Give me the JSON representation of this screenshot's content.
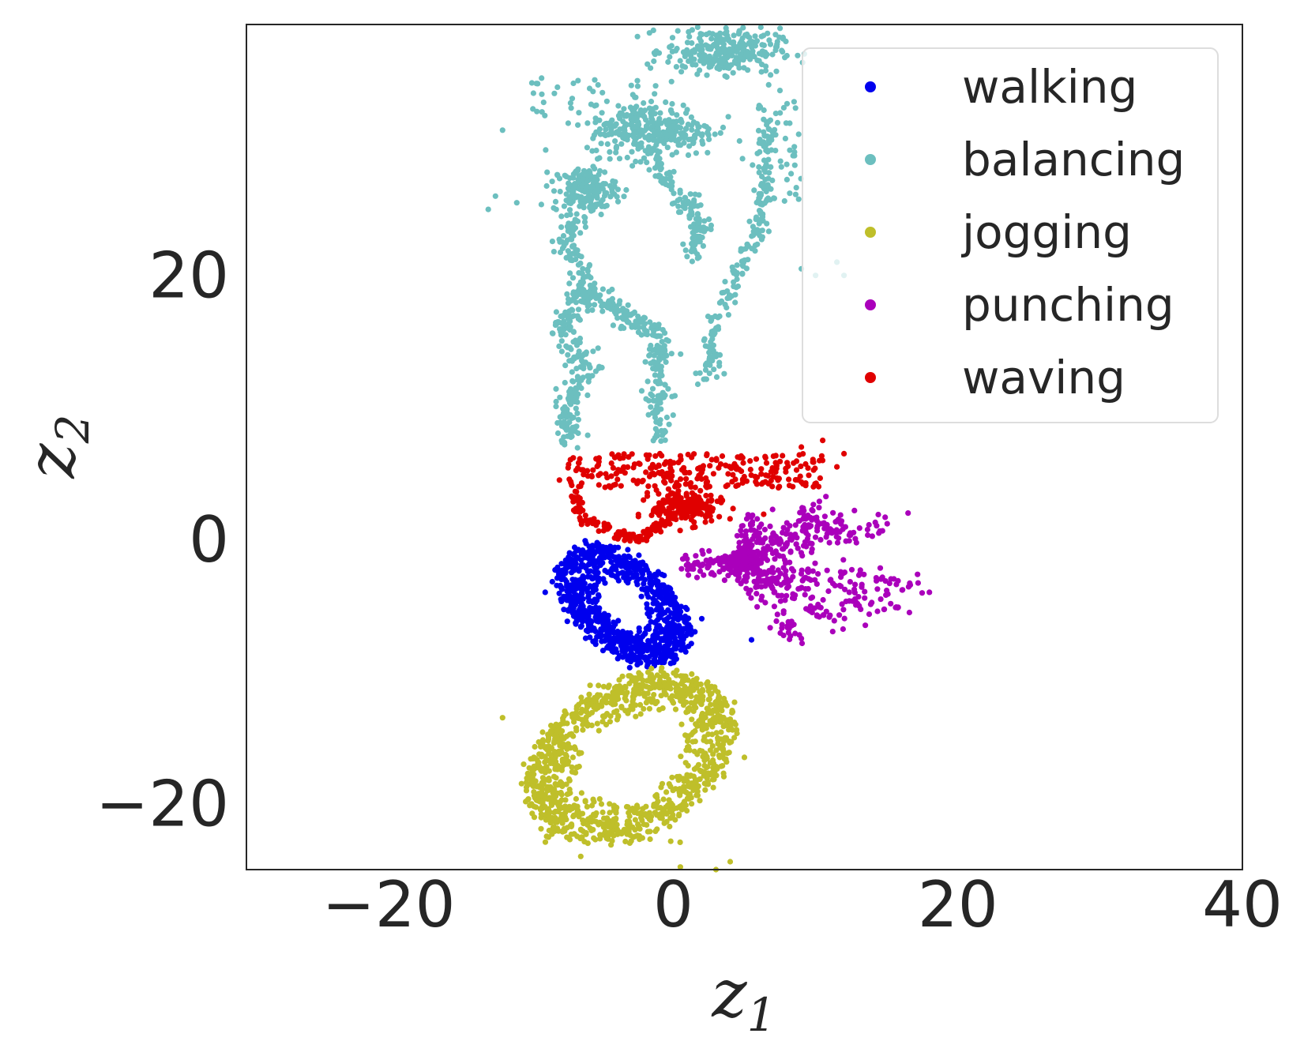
{
  "chart_data": {
    "type": "scatter",
    "xlabel": "z1",
    "ylabel": "z2",
    "xlabel_base": "z",
    "xlabel_sub": "1",
    "ylabel_base": "z",
    "ylabel_sub": "2",
    "xlim": [
      -30,
      40
    ],
    "ylim": [
      -25,
      39
    ],
    "xticks": [
      -20,
      0,
      20,
      40
    ],
    "xtick_labels": [
      "−20",
      "0",
      "20",
      "40"
    ],
    "yticks": [
      -20,
      0,
      20
    ],
    "ytick_labels": [
      "−20",
      "0",
      "20"
    ],
    "grid": false,
    "legend_position": "top-right",
    "series": [
      {
        "name": "walking",
        "color": "#0000ee",
        "clusters": [
          {
            "shape": "ring",
            "center": [
              -3.5,
              -5.0
            ],
            "radii": [
              5.5,
              3.3
            ],
            "inner": [
              1.8,
              1.2
            ],
            "angle": -45,
            "count": 900
          }
        ],
        "points": [
          [
            -9.0,
            -4.0
          ],
          [
            -8.5,
            -3.2
          ],
          [
            2.0,
            -6.0
          ],
          [
            5.5,
            -7.6
          ],
          [
            -1.5,
            -8.2
          ]
        ]
      },
      {
        "name": "balancing",
        "color": "#6cbfbf",
        "clusters": [
          {
            "shape": "blob",
            "center": [
              3.5,
              37.0
            ],
            "radii": [
              4.0,
              1.7
            ],
            "angle": 0,
            "count": 280
          },
          {
            "shape": "blob",
            "center": [
              -1.5,
              31.0
            ],
            "radii": [
              4.5,
              2.0
            ],
            "angle": 0,
            "count": 300
          },
          {
            "shape": "blob",
            "center": [
              -6.2,
              26.5
            ],
            "radii": [
              2.2,
              1.7
            ],
            "angle": 0,
            "count": 160
          },
          {
            "shape": "path",
            "points": [
              [
                -6.2,
                26.5
              ],
              [
                -7.5,
                22.5
              ],
              [
                -6.0,
                19.0
              ],
              [
                -8.0,
                16.0
              ],
              [
                -6.0,
                13.0
              ],
              [
                -7.5,
                10.0
              ],
              [
                -7.5,
                7.5
              ]
            ],
            "spread": 0.9,
            "count": 320
          },
          {
            "shape": "path",
            "points": [
              [
                -6.0,
                19.0
              ],
              [
                -3.5,
                17.0
              ],
              [
                -1.0,
                15.5
              ],
              [
                -1.0,
                12.0
              ],
              [
                -1.0,
                7.5
              ]
            ],
            "spread": 0.8,
            "count": 240
          },
          {
            "shape": "path",
            "points": [
              [
                -1.5,
                29.0
              ],
              [
                0.5,
                26.0
              ],
              [
                2.0,
                24.0
              ],
              [
                1.0,
                21.0
              ]
            ],
            "spread": 0.8,
            "count": 130
          },
          {
            "shape": "path",
            "points": [
              [
                6.5,
                32.0
              ],
              [
                6.5,
                27.0
              ],
              [
                6.0,
                24.0
              ],
              [
                4.5,
                20.0
              ],
              [
                3.0,
                17.0
              ],
              [
                2.5,
                12.0
              ]
            ],
            "spread": 0.7,
            "count": 200
          },
          {
            "shape": "scatter",
            "center": [
              -5.0,
              33.5
            ],
            "radii": [
              5.0,
              1.5
            ],
            "count": 45
          },
          {
            "shape": "scatter",
            "center": [
              7.5,
              30.0
            ],
            "radii": [
              1.5,
              4.5
            ],
            "count": 40
          }
        ],
        "points": [
          [
            -12.0,
            31.0
          ],
          [
            -12.5,
            26.0
          ],
          [
            -13.0,
            25.0
          ],
          [
            -11.0,
            25.5
          ],
          [
            7.5,
            34.0
          ],
          [
            8.0,
            33.0
          ],
          [
            6.5,
            35.5
          ],
          [
            9.0,
            20.5
          ],
          [
            10.0,
            20.0
          ],
          [
            11.5,
            21.0
          ],
          [
            12.0,
            20.0
          ]
        ]
      },
      {
        "name": "jogging",
        "color": "#bfbf2a",
        "clusters": [
          {
            "shape": "ring",
            "center": [
              -3.0,
              -16.5
            ],
            "radii": [
              8.0,
              5.5
            ],
            "inner": [
              4.0,
              0.8
            ],
            "angle": 35,
            "count": 1100
          },
          {
            "shape": "scatter",
            "center": [
              -4.0,
              -21.5
            ],
            "radii": [
              5.0,
              1.5
            ],
            "count": 35
          }
        ],
        "points": [
          [
            -6.0,
            -23.0
          ],
          [
            -6.5,
            -24.0
          ],
          [
            0.5,
            -24.8
          ],
          [
            4.0,
            -24.4
          ],
          [
            3.0,
            -25.0
          ],
          [
            -12.0,
            -13.5
          ],
          [
            5.0,
            -16.5
          ]
        ]
      },
      {
        "name": "punching",
        "color": "#aa00bb",
        "clusters": [
          {
            "shape": "fan",
            "center": [
              4.5,
              -1.8
            ],
            "tips": [
              [
                10.5,
                2.5
              ],
              [
                12.0,
                1.5
              ],
              [
                15.0,
                1.0
              ],
              [
                17.0,
                -3.5
              ],
              [
                16.0,
                -5.5
              ],
              [
                12.0,
                -6.5
              ],
              [
                8.5,
                -7.5
              ],
              [
                1.0,
                -2.0
              ],
              [
                6.0,
                1.5
              ]
            ],
            "count": 560
          },
          {
            "shape": "blob",
            "center": [
              4.8,
              -1.8
            ],
            "radii": [
              1.6,
              0.9
            ],
            "angle": 0,
            "count": 120
          }
        ],
        "points": [
          [
            16.5,
            2.0
          ],
          [
            18.0,
            -4.0
          ],
          [
            13.5,
            -6.5
          ],
          [
            9.0,
            -7.5
          ]
        ]
      },
      {
        "name": "waving",
        "color": "#e00000",
        "clusters": [
          {
            "shape": "blob",
            "center": [
              1.0,
              2.5
            ],
            "radii": [
              2.5,
              1.3
            ],
            "angle": 0,
            "count": 200
          },
          {
            "shape": "path",
            "points": [
              [
                -7.0,
                3.5
              ],
              [
                -6.5,
                1.5
              ],
              [
                -4.0,
                0.5
              ],
              [
                -2.5,
                0.0
              ],
              [
                -1.0,
                1.0
              ],
              [
                1.0,
                2.5
              ]
            ],
            "spread": 0.35,
            "count": 150
          },
          {
            "shape": "scatter",
            "center": [
              1.5,
              5.2
            ],
            "radii": [
              9.0,
              1.3
            ],
            "count": 260
          }
        ],
        "points": [
          [
            10.5,
            7.5
          ],
          [
            12.0,
            6.5
          ],
          [
            11.5,
            5.5
          ],
          [
            -8.0,
            4.5
          ],
          [
            9.0,
            7.0
          ]
        ]
      }
    ]
  }
}
